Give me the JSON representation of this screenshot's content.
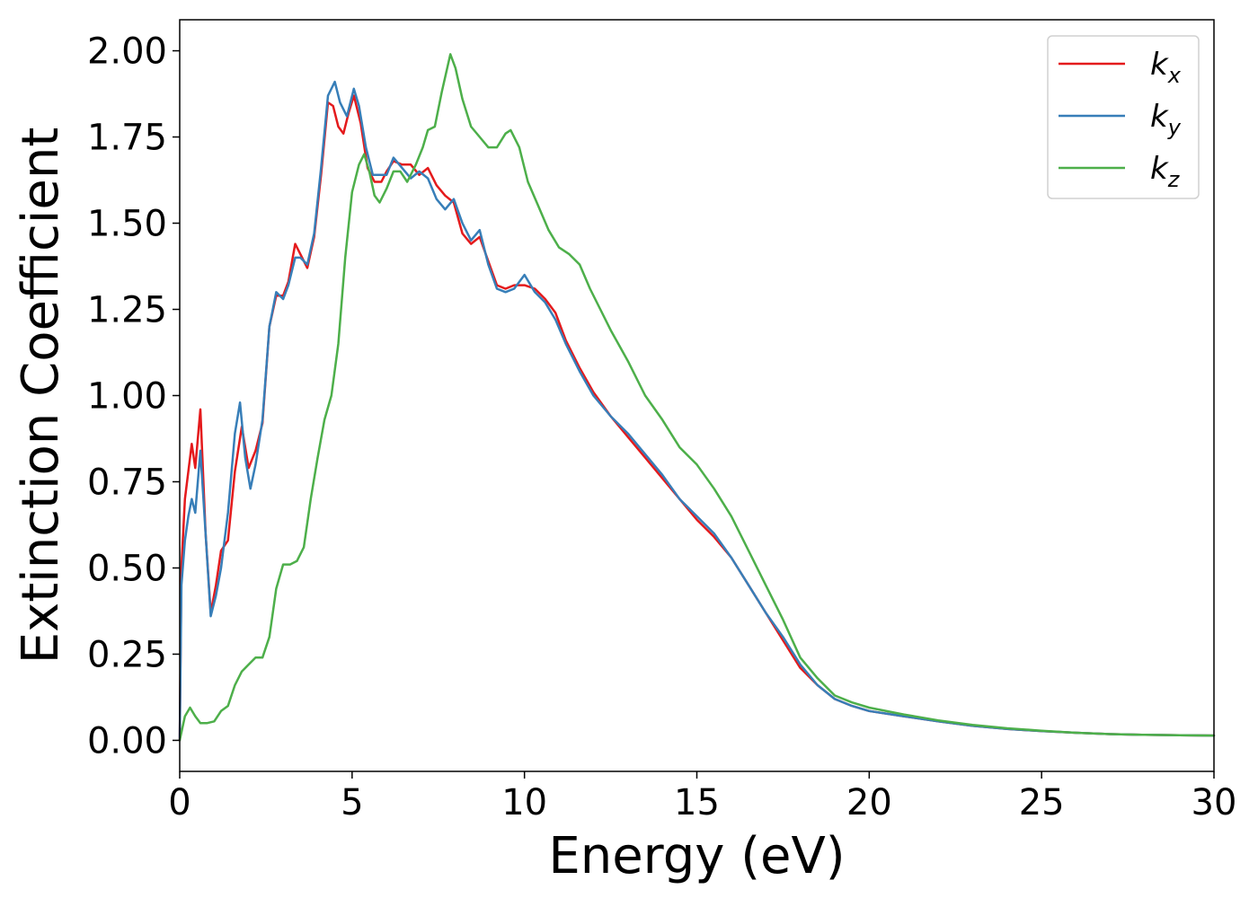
{
  "chart_data": {
    "type": "line",
    "title": "",
    "xlabel": "Energy (eV)",
    "ylabel": "Extinction Coefficient",
    "xlim": [
      0,
      30
    ],
    "ylim": [
      -0.09,
      2.09
    ],
    "xticks": [
      0,
      5,
      10,
      15,
      20,
      25,
      30
    ],
    "yticks": [
      0.0,
      0.25,
      0.5,
      0.75,
      1.0,
      1.25,
      1.5,
      1.75,
      2.0
    ],
    "xtick_labels": [
      "0",
      "5",
      "10",
      "15",
      "20",
      "25",
      "30"
    ],
    "ytick_labels": [
      "0.00",
      "0.25",
      "0.50",
      "0.75",
      "1.00",
      "1.25",
      "1.50",
      "1.75",
      "2.00"
    ],
    "grid": false,
    "legend_position": "top-right",
    "series": [
      {
        "name": "k_x",
        "label_main": "k",
        "label_sub": "x",
        "color": "#e41a1c",
        "points": [
          [
            0,
            0
          ],
          [
            0.05,
            0.5
          ],
          [
            0.15,
            0.7
          ],
          [
            0.25,
            0.78
          ],
          [
            0.35,
            0.86
          ],
          [
            0.45,
            0.79
          ],
          [
            0.6,
            0.96
          ],
          [
            0.75,
            0.6
          ],
          [
            0.9,
            0.37
          ],
          [
            1.05,
            0.45
          ],
          [
            1.2,
            0.55
          ],
          [
            1.4,
            0.58
          ],
          [
            1.6,
            0.78
          ],
          [
            1.8,
            0.91
          ],
          [
            2.0,
            0.79
          ],
          [
            2.2,
            0.84
          ],
          [
            2.4,
            0.92
          ],
          [
            2.6,
            1.2
          ],
          [
            2.8,
            1.29
          ],
          [
            3.0,
            1.29
          ],
          [
            3.15,
            1.33
          ],
          [
            3.35,
            1.44
          ],
          [
            3.5,
            1.41
          ],
          [
            3.7,
            1.37
          ],
          [
            3.9,
            1.46
          ],
          [
            4.1,
            1.64
          ],
          [
            4.3,
            1.85
          ],
          [
            4.45,
            1.84
          ],
          [
            4.6,
            1.78
          ],
          [
            4.75,
            1.76
          ],
          [
            4.9,
            1.82
          ],
          [
            5.05,
            1.87
          ],
          [
            5.25,
            1.79
          ],
          [
            5.45,
            1.66
          ],
          [
            5.65,
            1.62
          ],
          [
            5.85,
            1.62
          ],
          [
            6.0,
            1.65
          ],
          [
            6.2,
            1.68
          ],
          [
            6.45,
            1.67
          ],
          [
            6.7,
            1.67
          ],
          [
            6.95,
            1.64
          ],
          [
            7.2,
            1.66
          ],
          [
            7.45,
            1.61
          ],
          [
            7.7,
            1.58
          ],
          [
            7.95,
            1.56
          ],
          [
            8.2,
            1.47
          ],
          [
            8.45,
            1.44
          ],
          [
            8.7,
            1.46
          ],
          [
            8.95,
            1.39
          ],
          [
            9.2,
            1.32
          ],
          [
            9.45,
            1.31
          ],
          [
            9.7,
            1.32
          ],
          [
            10.0,
            1.32
          ],
          [
            10.3,
            1.31
          ],
          [
            10.6,
            1.28
          ],
          [
            10.9,
            1.24
          ],
          [
            11.2,
            1.16
          ],
          [
            11.6,
            1.08
          ],
          [
            12.0,
            1.01
          ],
          [
            12.5,
            0.94
          ],
          [
            13.0,
            0.88
          ],
          [
            13.5,
            0.82
          ],
          [
            14.0,
            0.76
          ],
          [
            14.5,
            0.7
          ],
          [
            15.0,
            0.64
          ],
          [
            15.5,
            0.59
          ],
          [
            16.0,
            0.53
          ],
          [
            16.5,
            0.45
          ],
          [
            17.0,
            0.37
          ],
          [
            17.5,
            0.29
          ],
          [
            18.0,
            0.21
          ],
          [
            18.5,
            0.16
          ],
          [
            19.0,
            0.12
          ],
          [
            19.5,
            0.1
          ],
          [
            20.0,
            0.085
          ],
          [
            21.0,
            0.07
          ],
          [
            22.0,
            0.055
          ],
          [
            23.0,
            0.042
          ],
          [
            24.0,
            0.033
          ],
          [
            25.0,
            0.027
          ],
          [
            26.0,
            0.022
          ],
          [
            27.0,
            0.018
          ],
          [
            28.0,
            0.016
          ],
          [
            29.0,
            0.015
          ],
          [
            30.0,
            0.014
          ]
        ]
      },
      {
        "name": "k_y",
        "label_main": "k",
        "label_sub": "y",
        "color": "#377eb8",
        "points": [
          [
            0,
            0
          ],
          [
            0.05,
            0.45
          ],
          [
            0.15,
            0.58
          ],
          [
            0.25,
            0.65
          ],
          [
            0.35,
            0.7
          ],
          [
            0.45,
            0.66
          ],
          [
            0.6,
            0.84
          ],
          [
            0.75,
            0.6
          ],
          [
            0.9,
            0.36
          ],
          [
            1.05,
            0.42
          ],
          [
            1.2,
            0.5
          ],
          [
            1.4,
            0.66
          ],
          [
            1.6,
            0.89
          ],
          [
            1.75,
            0.98
          ],
          [
            1.9,
            0.82
          ],
          [
            2.05,
            0.73
          ],
          [
            2.2,
            0.8
          ],
          [
            2.4,
            0.93
          ],
          [
            2.6,
            1.2
          ],
          [
            2.8,
            1.3
          ],
          [
            3.0,
            1.28
          ],
          [
            3.15,
            1.32
          ],
          [
            3.35,
            1.4
          ],
          [
            3.5,
            1.4
          ],
          [
            3.7,
            1.38
          ],
          [
            3.9,
            1.47
          ],
          [
            4.1,
            1.66
          ],
          [
            4.3,
            1.87
          ],
          [
            4.5,
            1.91
          ],
          [
            4.65,
            1.85
          ],
          [
            4.85,
            1.81
          ],
          [
            5.05,
            1.89
          ],
          [
            5.2,
            1.84
          ],
          [
            5.4,
            1.72
          ],
          [
            5.6,
            1.64
          ],
          [
            5.8,
            1.64
          ],
          [
            6.0,
            1.64
          ],
          [
            6.2,
            1.69
          ],
          [
            6.45,
            1.66
          ],
          [
            6.7,
            1.63
          ],
          [
            6.95,
            1.65
          ],
          [
            7.2,
            1.63
          ],
          [
            7.45,
            1.57
          ],
          [
            7.7,
            1.54
          ],
          [
            7.95,
            1.57
          ],
          [
            8.2,
            1.5
          ],
          [
            8.45,
            1.45
          ],
          [
            8.7,
            1.48
          ],
          [
            8.95,
            1.38
          ],
          [
            9.2,
            1.31
          ],
          [
            9.45,
            1.3
          ],
          [
            9.7,
            1.31
          ],
          [
            10.0,
            1.35
          ],
          [
            10.3,
            1.3
          ],
          [
            10.6,
            1.27
          ],
          [
            10.9,
            1.22
          ],
          [
            11.2,
            1.15
          ],
          [
            11.6,
            1.07
          ],
          [
            12.0,
            1.0
          ],
          [
            12.5,
            0.94
          ],
          [
            13.0,
            0.89
          ],
          [
            13.5,
            0.83
          ],
          [
            14.0,
            0.77
          ],
          [
            14.5,
            0.7
          ],
          [
            15.0,
            0.65
          ],
          [
            15.5,
            0.6
          ],
          [
            16.0,
            0.53
          ],
          [
            16.5,
            0.45
          ],
          [
            17.0,
            0.37
          ],
          [
            17.5,
            0.3
          ],
          [
            18.0,
            0.22
          ],
          [
            18.5,
            0.16
          ],
          [
            19.0,
            0.12
          ],
          [
            19.5,
            0.1
          ],
          [
            20.0,
            0.085
          ],
          [
            21.0,
            0.07
          ],
          [
            22.0,
            0.055
          ],
          [
            23.0,
            0.042
          ],
          [
            24.0,
            0.033
          ],
          [
            25.0,
            0.027
          ],
          [
            26.0,
            0.022
          ],
          [
            27.0,
            0.018
          ],
          [
            28.0,
            0.016
          ],
          [
            29.0,
            0.015
          ],
          [
            30.0,
            0.014
          ]
        ]
      },
      {
        "name": "k_z",
        "label_main": "k",
        "label_sub": "z",
        "color": "#4daf4a",
        "points": [
          [
            0,
            0
          ],
          [
            0.15,
            0.07
          ],
          [
            0.3,
            0.095
          ],
          [
            0.45,
            0.07
          ],
          [
            0.6,
            0.05
          ],
          [
            0.8,
            0.05
          ],
          [
            1.0,
            0.055
          ],
          [
            1.2,
            0.085
          ],
          [
            1.4,
            0.1
          ],
          [
            1.6,
            0.16
          ],
          [
            1.8,
            0.2
          ],
          [
            2.0,
            0.22
          ],
          [
            2.2,
            0.24
          ],
          [
            2.4,
            0.24
          ],
          [
            2.6,
            0.3
          ],
          [
            2.8,
            0.44
          ],
          [
            3.0,
            0.51
          ],
          [
            3.2,
            0.51
          ],
          [
            3.4,
            0.52
          ],
          [
            3.6,
            0.56
          ],
          [
            3.8,
            0.7
          ],
          [
            4.0,
            0.82
          ],
          [
            4.2,
            0.93
          ],
          [
            4.4,
            1.0
          ],
          [
            4.6,
            1.15
          ],
          [
            4.8,
            1.4
          ],
          [
            5.0,
            1.59
          ],
          [
            5.2,
            1.67
          ],
          [
            5.35,
            1.7
          ],
          [
            5.5,
            1.65
          ],
          [
            5.65,
            1.58
          ],
          [
            5.8,
            1.56
          ],
          [
            6.0,
            1.6
          ],
          [
            6.2,
            1.65
          ],
          [
            6.4,
            1.65
          ],
          [
            6.6,
            1.62
          ],
          [
            6.85,
            1.67
          ],
          [
            7.05,
            1.72
          ],
          [
            7.2,
            1.77
          ],
          [
            7.4,
            1.78
          ],
          [
            7.6,
            1.88
          ],
          [
            7.85,
            1.99
          ],
          [
            8.0,
            1.95
          ],
          [
            8.2,
            1.86
          ],
          [
            8.45,
            1.78
          ],
          [
            8.7,
            1.75
          ],
          [
            8.95,
            1.72
          ],
          [
            9.2,
            1.72
          ],
          [
            9.45,
            1.76
          ],
          [
            9.6,
            1.77
          ],
          [
            9.85,
            1.72
          ],
          [
            10.1,
            1.62
          ],
          [
            10.4,
            1.55
          ],
          [
            10.7,
            1.48
          ],
          [
            11.0,
            1.43
          ],
          [
            11.3,
            1.41
          ],
          [
            11.6,
            1.38
          ],
          [
            11.9,
            1.31
          ],
          [
            12.2,
            1.25
          ],
          [
            12.5,
            1.19
          ],
          [
            13.0,
            1.1
          ],
          [
            13.5,
            1.0
          ],
          [
            14.0,
            0.93
          ],
          [
            14.5,
            0.85
          ],
          [
            15.0,
            0.8
          ],
          [
            15.5,
            0.73
          ],
          [
            16.0,
            0.65
          ],
          [
            16.5,
            0.55
          ],
          [
            17.0,
            0.45
          ],
          [
            17.5,
            0.35
          ],
          [
            18.0,
            0.24
          ],
          [
            18.5,
            0.18
          ],
          [
            19.0,
            0.13
          ],
          [
            19.5,
            0.11
          ],
          [
            20.0,
            0.095
          ],
          [
            21.0,
            0.075
          ],
          [
            22.0,
            0.058
          ],
          [
            23.0,
            0.045
          ],
          [
            24.0,
            0.035
          ],
          [
            25.0,
            0.028
          ],
          [
            26.0,
            0.022
          ],
          [
            27.0,
            0.018
          ],
          [
            28.0,
            0.016
          ],
          [
            29.0,
            0.015
          ],
          [
            30.0,
            0.014
          ]
        ]
      }
    ]
  }
}
